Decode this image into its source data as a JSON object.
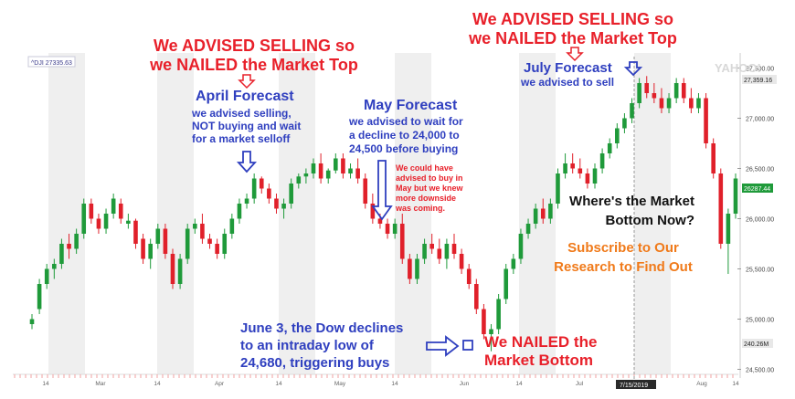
{
  "colors": {
    "up": "#1f9a3a",
    "down": "#e0202a",
    "band": "#efefef",
    "red": "#e8202a",
    "blue": "#2f3fbf",
    "orange": "#f07a1a"
  },
  "chart_data": {
    "type": "candlestick",
    "symbol_label": "^DJI  27335.63",
    "watermark": "YAHOO!",
    "x_tick_labels": [
      "14",
      "Mar",
      "14",
      "Apr",
      "14",
      "May",
      "14",
      "Jun",
      "14",
      "Jul",
      "14",
      "Aug",
      "14"
    ],
    "y_ticks": [
      "27,500.00",
      "27,000.00",
      "26,500.00",
      "26,000.00",
      "25,500.00",
      "25,000.00",
      "24,500.00"
    ],
    "ylim": [
      24450,
      27650
    ],
    "tags": {
      "last": "27,359.16",
      "secondary": "26287.44",
      "volume": "240.26M",
      "date": "7/15/2019"
    },
    "candles": [
      [
        24950,
        25050,
        24900,
        25000
      ],
      [
        25100,
        25400,
        25050,
        25350
      ],
      [
        25350,
        25550,
        25300,
        25500
      ],
      [
        25500,
        25600,
        25400,
        25550
      ],
      [
        25550,
        25800,
        25500,
        25750
      ],
      [
        25750,
        25850,
        25600,
        25700
      ],
      [
        25700,
        25900,
        25650,
        25850
      ],
      [
        25850,
        26200,
        25800,
        26150
      ],
      [
        26150,
        26200,
        25950,
        26000
      ],
      [
        26000,
        26050,
        25850,
        25900
      ],
      [
        25900,
        26100,
        25850,
        26050
      ],
      [
        26050,
        26250,
        26000,
        26200
      ],
      [
        26150,
        26200,
        25950,
        26000
      ],
      [
        25950,
        26050,
        25900,
        25980
      ],
      [
        25980,
        26000,
        25700,
        25750
      ],
      [
        25800,
        25850,
        25550,
        25600
      ],
      [
        25600,
        25800,
        25500,
        25750
      ],
      [
        25750,
        25950,
        25700,
        25900
      ],
      [
        25900,
        25950,
        25600,
        25650
      ],
      [
        25650,
        25700,
        25300,
        25350
      ],
      [
        25350,
        25650,
        25300,
        25600
      ],
      [
        25600,
        25950,
        25550,
        25900
      ],
      [
        25900,
        26000,
        25850,
        25950
      ],
      [
        25950,
        26050,
        25750,
        25800
      ],
      [
        25800,
        25850,
        25700,
        25750
      ],
      [
        25750,
        25800,
        25600,
        25650
      ],
      [
        25650,
        25900,
        25600,
        25850
      ],
      [
        25850,
        26050,
        25800,
        26000
      ],
      [
        26000,
        26200,
        25950,
        26150
      ],
      [
        26150,
        26250,
        26100,
        26200
      ],
      [
        26200,
        26450,
        26150,
        26400
      ],
      [
        26400,
        26420,
        26250,
        26300
      ],
      [
        26300,
        26350,
        26150,
        26200
      ],
      [
        26200,
        26250,
        26050,
        26100
      ],
      [
        26100,
        26200,
        26000,
        26150
      ],
      [
        26150,
        26400,
        26100,
        26350
      ],
      [
        26350,
        26450,
        26300,
        26420
      ],
      [
        26420,
        26500,
        26350,
        26450
      ],
      [
        26450,
        26600,
        26400,
        26550
      ],
      [
        26550,
        26650,
        26350,
        26400
      ],
      [
        26400,
        26500,
        26350,
        26480
      ],
      [
        26480,
        26650,
        26450,
        26600
      ],
      [
        26600,
        26650,
        26400,
        26450
      ],
      [
        26450,
        26550,
        26400,
        26500
      ],
      [
        26500,
        26600,
        26350,
        26400
      ],
      [
        26400,
        26450,
        26100,
        26150
      ],
      [
        26150,
        26250,
        25950,
        26000
      ],
      [
        26000,
        26050,
        25900,
        25950
      ],
      [
        25950,
        26000,
        25800,
        25850
      ],
      [
        25850,
        26000,
        25800,
        25950
      ],
      [
        25950,
        26050,
        25550,
        25600
      ],
      [
        25600,
        25650,
        25350,
        25400
      ],
      [
        25400,
        25650,
        25350,
        25600
      ],
      [
        25600,
        25800,
        25550,
        25750
      ],
      [
        25750,
        25850,
        25650,
        25700
      ],
      [
        25700,
        25800,
        25550,
        25600
      ],
      [
        25600,
        25800,
        25500,
        25750
      ],
      [
        25750,
        25850,
        25600,
        25650
      ],
      [
        25650,
        25700,
        25450,
        25500
      ],
      [
        25500,
        25550,
        25300,
        25350
      ],
      [
        25350,
        25400,
        25050,
        25100
      ],
      [
        25100,
        25150,
        24800,
        24850
      ],
      [
        24850,
        24950,
        24680,
        24900
      ],
      [
        24900,
        25250,
        24850,
        25200
      ],
      [
        25200,
        25550,
        25150,
        25500
      ],
      [
        25500,
        25650,
        25450,
        25600
      ],
      [
        25600,
        25900,
        25550,
        25850
      ],
      [
        25850,
        26000,
        25800,
        25950
      ],
      [
        25950,
        26150,
        25900,
        26100
      ],
      [
        26100,
        26200,
        25950,
        26000
      ],
      [
        26000,
        26200,
        25950,
        26150
      ],
      [
        26150,
        26500,
        26100,
        26450
      ],
      [
        26450,
        26650,
        26400,
        26550
      ],
      [
        26550,
        26650,
        26450,
        26500
      ],
      [
        26500,
        26600,
        26400,
        26450
      ],
      [
        26450,
        26500,
        26300,
        26350
      ],
      [
        26350,
        26550,
        26300,
        26500
      ],
      [
        26500,
        26700,
        26450,
        26650
      ],
      [
        26650,
        26800,
        26600,
        26750
      ],
      [
        26750,
        26950,
        26700,
        26900
      ],
      [
        26900,
        27050,
        26850,
        27000
      ],
      [
        27000,
        27200,
        26950,
        27150
      ],
      [
        27150,
        27400,
        27100,
        27350
      ],
      [
        27350,
        27420,
        27200,
        27250
      ],
      [
        27250,
        27350,
        27150,
        27200
      ],
      [
        27200,
        27300,
        27050,
        27100
      ],
      [
        27100,
        27250,
        27050,
        27200
      ],
      [
        27200,
        27400,
        27150,
        27350
      ],
      [
        27350,
        27400,
        27150,
        27200
      ],
      [
        27200,
        27300,
        27050,
        27100
      ],
      [
        27100,
        27250,
        27050,
        27200
      ],
      [
        27200,
        27250,
        26700,
        26750
      ],
      [
        26750,
        26800,
        26400,
        26450
      ],
      [
        26450,
        26500,
        25700,
        25750
      ],
      [
        25750,
        26100,
        25450,
        26050
      ],
      [
        26050,
        26450,
        26000,
        26400
      ]
    ]
  },
  "annotations": {
    "top_left_red": [
      "We ADVISED SELLING so",
      "we NAILED the Market Top"
    ],
    "top_right_red": [
      "We ADVISED SELLING so",
      "we NAILED the Market Top"
    ],
    "april_title": "April Forecast",
    "april_body": [
      "we advised selling,",
      "NOT buying and wait",
      "for a market selloff"
    ],
    "may_title": "May Forecast",
    "may_body": [
      "we advised to wait for",
      "a decline to 24,000 to",
      "24,500 before buying"
    ],
    "may_note": [
      "We could have",
      "advised to buy in",
      "May but we knew",
      "more downside",
      "was coming."
    ],
    "july_title": "July Forecast",
    "july_body": "we advised to sell",
    "june_text": [
      "June 3, the Dow declines",
      "to an intraday low of",
      "24,680, triggering buys"
    ],
    "nailed_bottom": [
      "We NAILED the",
      "Market Bottom"
    ],
    "where_bottom": [
      "Where's the Market",
      "Bottom Now?"
    ],
    "subscribe": [
      "Subscribe to Our",
      "Research to Find Out"
    ]
  }
}
